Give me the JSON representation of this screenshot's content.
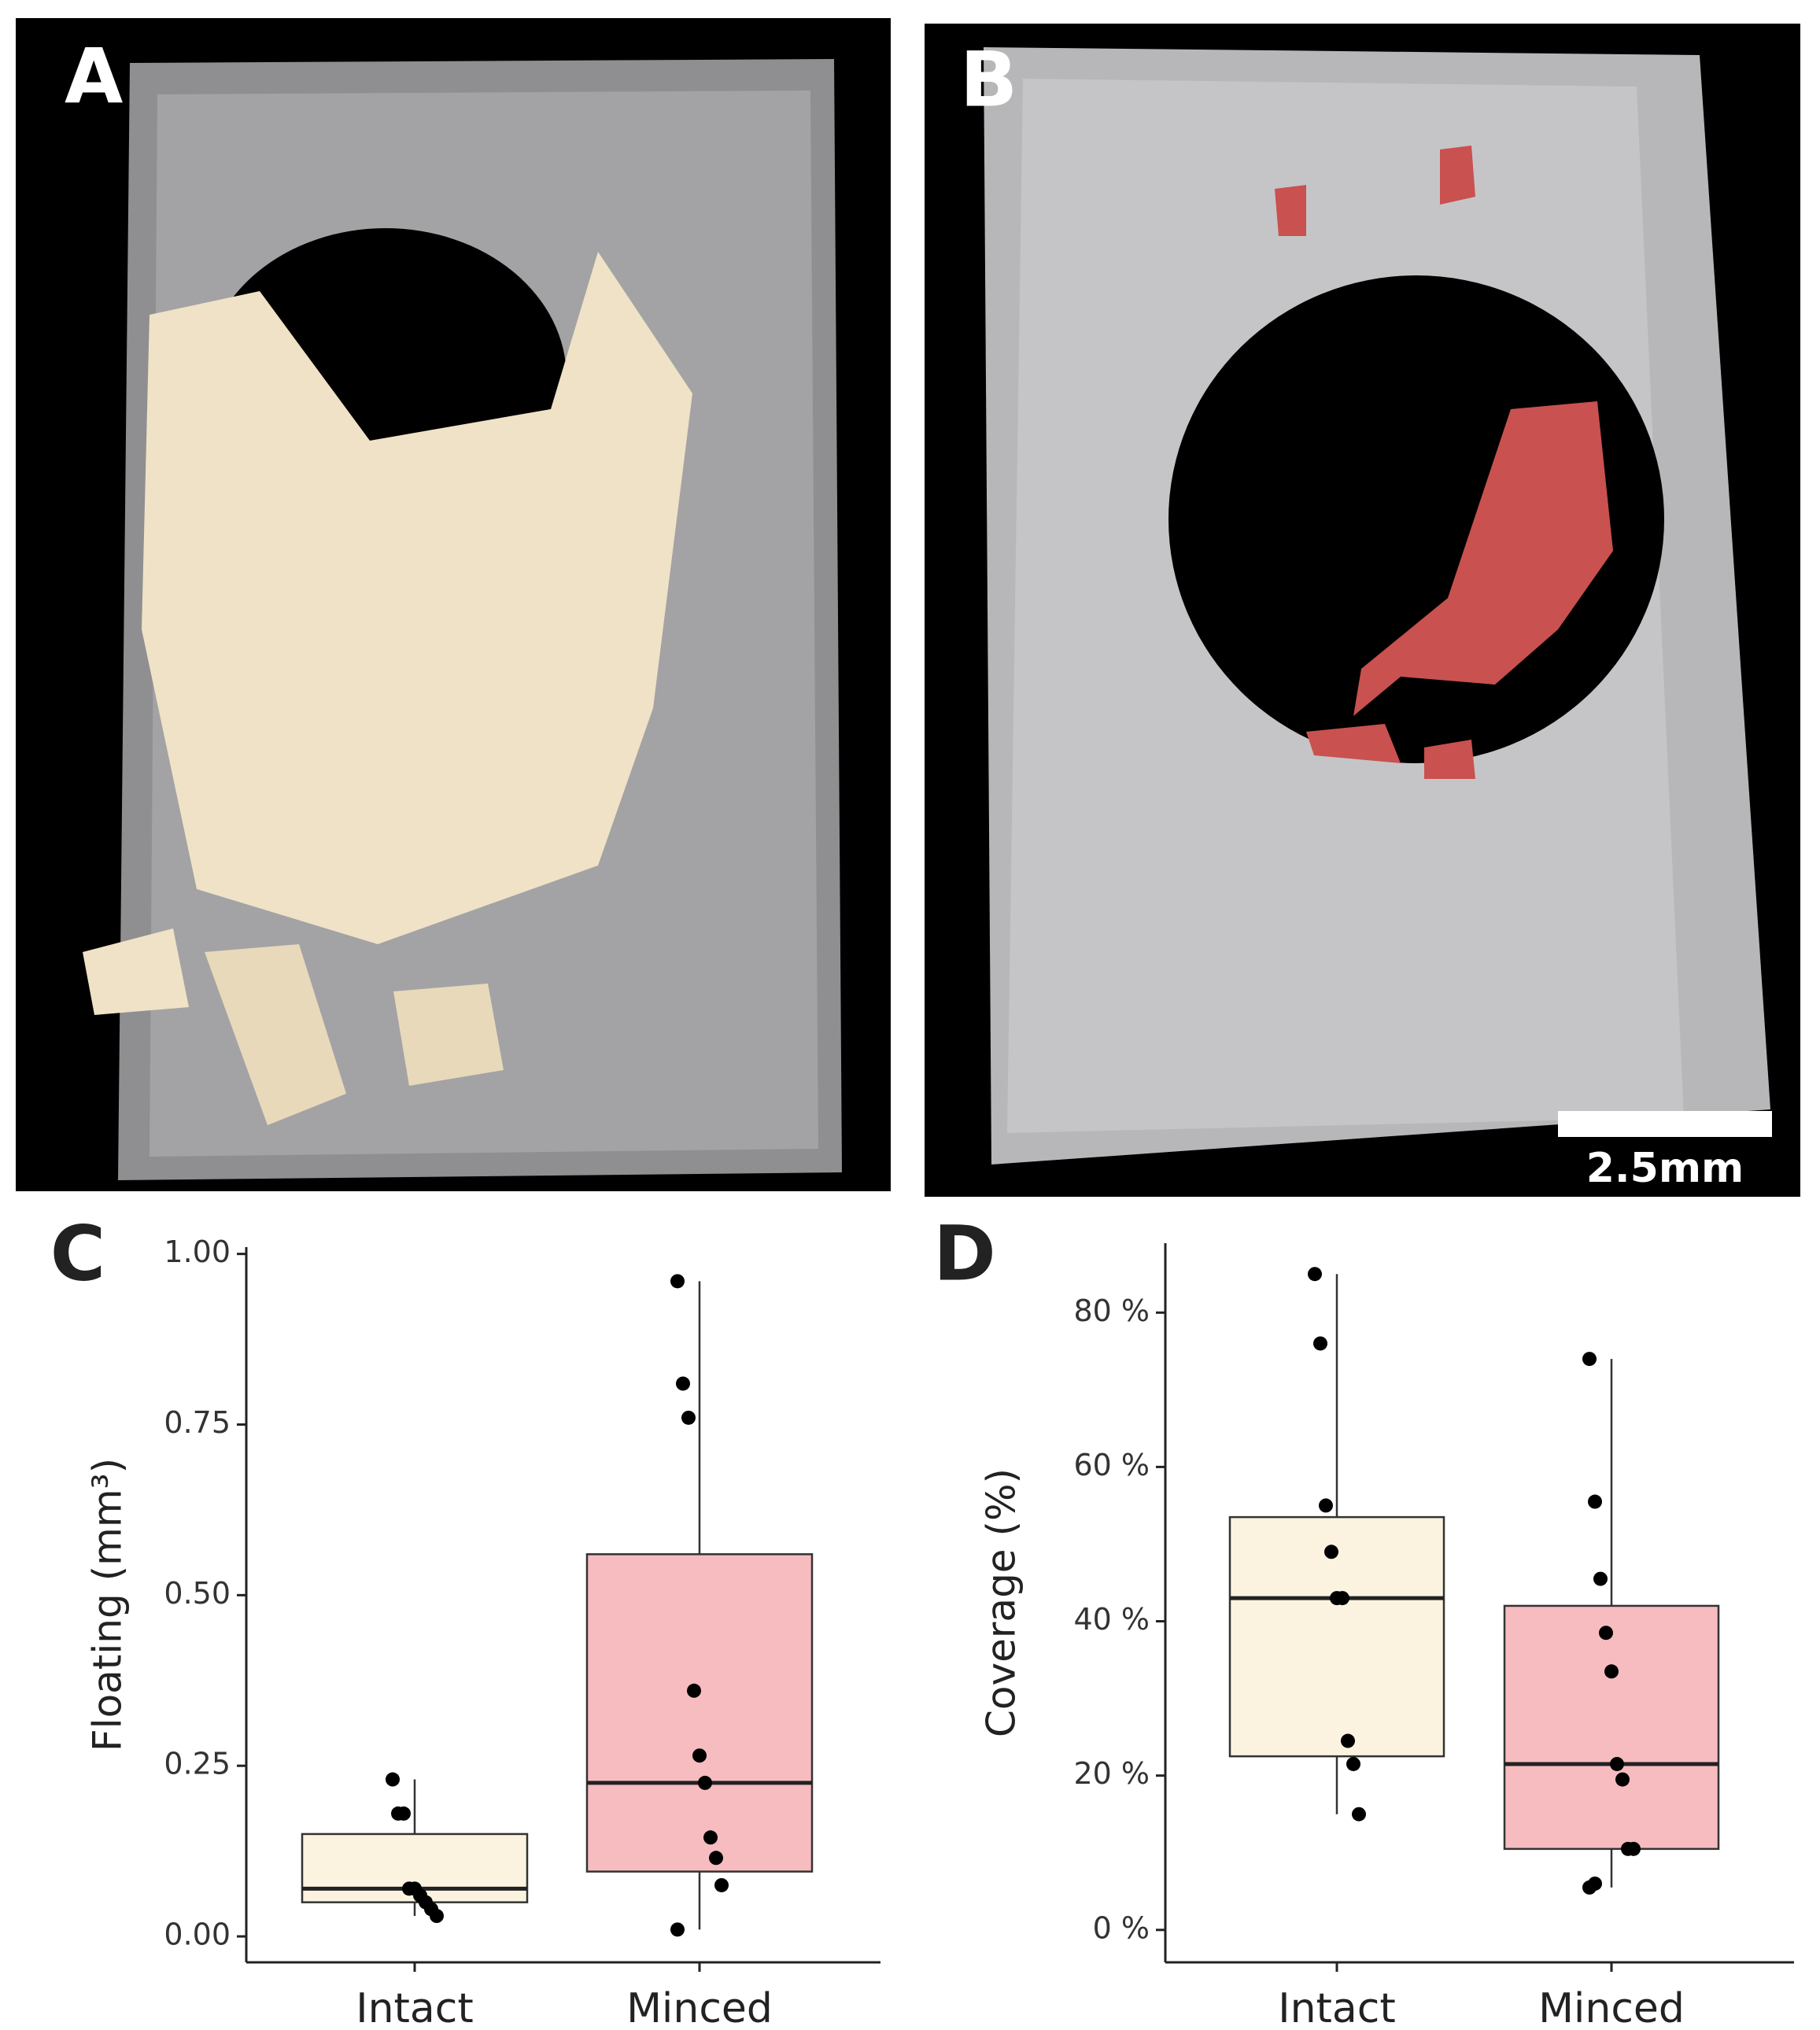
{
  "panels": [
    {
      "label": "A"
    },
    {
      "label": "B",
      "scale_bar": "2.5mm"
    }
  ],
  "chart_data": [
    {
      "type": "box",
      "label": "C",
      "y_label": "Floating (mm³)",
      "categories": [
        "Intact",
        "Minced"
      ],
      "colors": [
        "#fbf3e0",
        "#f7bcbf"
      ],
      "boxes": [
        {
          "whisker_low": 0.03,
          "q1": 0.05,
          "median": 0.07,
          "q3": 0.15,
          "whisker_high": 0.23,
          "points": [
            0.23,
            0.18,
            0.18,
            0.07,
            0.07,
            0.06,
            0.05,
            0.04,
            0.03
          ]
        },
        {
          "whisker_low": 0.01,
          "q1": 0.095,
          "median": 0.225,
          "q3": 0.56,
          "whisker_high": 0.96,
          "points": [
            0.96,
            0.81,
            0.76,
            0.36,
            0.265,
            0.225,
            0.145,
            0.115,
            0.075,
            0.01
          ]
        }
      ],
      "ylim": [
        -0.038,
        1.01
      ],
      "yticks": [
        {
          "value": 0,
          "label": "0.00"
        },
        {
          "value": 0.25,
          "label": "0.25"
        },
        {
          "value": 0.5,
          "label": "0.50"
        },
        {
          "value": 0.75,
          "label": "0.75"
        },
        {
          "value": 1,
          "label": "1.00"
        }
      ]
    },
    {
      "type": "box",
      "label": "D",
      "y_label": "Coverage (%)",
      "categories": [
        "Intact",
        "Minced"
      ],
      "colors": [
        "#fbf3e0",
        "#f7bcbf"
      ],
      "boxes": [
        {
          "whisker_low": 15,
          "q1": 22.5,
          "median": 43,
          "q3": 53.5,
          "whisker_high": 85,
          "points": [
            85,
            76,
            55,
            49,
            43,
            43,
            24.5,
            21.5,
            15
          ]
        },
        {
          "whisker_low": 5.5,
          "q1": 10.5,
          "median": 21.5,
          "q3": 42,
          "whisker_high": 74,
          "points": [
            74,
            55.5,
            45.5,
            38.5,
            33.5,
            21.5,
            19.5,
            10.5,
            10.5,
            5.5,
            6
          ]
        }
      ],
      "ylim": [
        -4.2,
        89
      ],
      "yticks": [
        {
          "value": 0,
          "label": "0 %"
        },
        {
          "value": 20,
          "label": "20 %"
        },
        {
          "value": 40,
          "label": "40 %"
        },
        {
          "value": 60,
          "label": "60 %"
        },
        {
          "value": 80,
          "label": "80 %"
        }
      ]
    }
  ]
}
